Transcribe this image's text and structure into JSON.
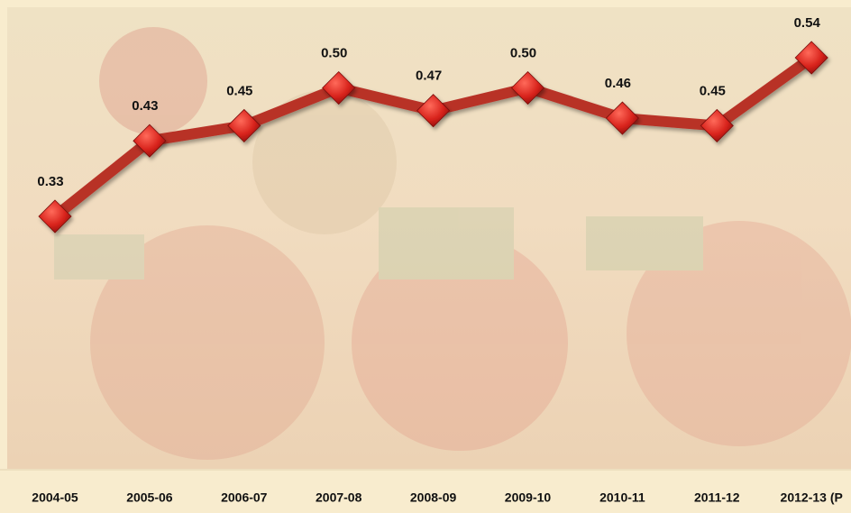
{
  "chart_data": {
    "type": "line",
    "categories": [
      "2004-05",
      "2005-06",
      "2006-07",
      "2007-08",
      "2008-09",
      "2009-10",
      "2010-11",
      "2011-12",
      "2012-13 (P"
    ],
    "values": [
      0.33,
      0.43,
      0.45,
      0.5,
      0.47,
      0.5,
      0.46,
      0.45,
      0.54
    ],
    "value_labels": [
      "0.33",
      "0.43",
      "0.45",
      "0.50",
      "0.47",
      "0.50",
      "0.46",
      "0.45",
      "0.54"
    ],
    "color": "#b83228",
    "marker_color": "#d8231c"
  }
}
